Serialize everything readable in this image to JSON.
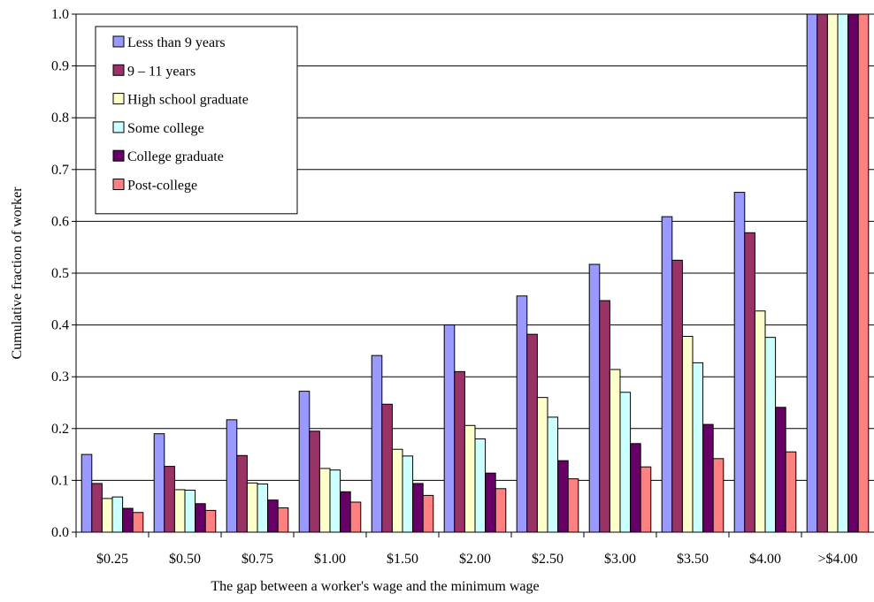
{
  "chart_data": {
    "type": "bar",
    "title": "",
    "xlabel": "The gap between a worker's wage and the minimum wage",
    "ylabel": "Cumulative fraction of worker",
    "ylim": [
      0,
      1.0
    ],
    "yticks": [
      "0.0",
      "0.1",
      "0.2",
      "0.3",
      "0.4",
      "0.5",
      "0.6",
      "0.7",
      "0.8",
      "0.9",
      "1.0"
    ],
    "grid": true,
    "legend_position": "top-left",
    "categories": [
      "$0.25",
      "$0.50",
      "$0.75",
      "$1.00",
      "$1.50",
      "$2.00",
      "$2.50",
      "$3.00",
      "$3.50",
      "$4.00",
      ">$4.00"
    ],
    "series": [
      {
        "name": "Less than 9 years",
        "color": "#9999ff",
        "values": [
          0.15,
          0.19,
          0.217,
          0.272,
          0.341,
          0.4,
          0.456,
          0.517,
          0.609,
          0.656,
          1.0
        ]
      },
      {
        "name": "9 – 11 years",
        "color": "#993366",
        "values": [
          0.094,
          0.127,
          0.148,
          0.195,
          0.247,
          0.31,
          0.382,
          0.447,
          0.525,
          0.578,
          1.0
        ]
      },
      {
        "name": "High school graduate",
        "color": "#ffffcc",
        "values": [
          0.065,
          0.082,
          0.095,
          0.123,
          0.16,
          0.206,
          0.26,
          0.314,
          0.378,
          0.427,
          1.0
        ]
      },
      {
        "name": "Some college",
        "color": "#ccffff",
        "values": [
          0.068,
          0.081,
          0.093,
          0.12,
          0.147,
          0.18,
          0.222,
          0.27,
          0.327,
          0.376,
          1.0
        ]
      },
      {
        "name": "College graduate",
        "color": "#660066",
        "values": [
          0.046,
          0.055,
          0.062,
          0.078,
          0.094,
          0.114,
          0.138,
          0.171,
          0.208,
          0.241,
          1.0
        ]
      },
      {
        "name": "Post-college",
        "color": "#ff8080",
        "values": [
          0.038,
          0.042,
          0.047,
          0.058,
          0.071,
          0.084,
          0.103,
          0.126,
          0.142,
          0.155,
          1.0
        ]
      }
    ]
  }
}
